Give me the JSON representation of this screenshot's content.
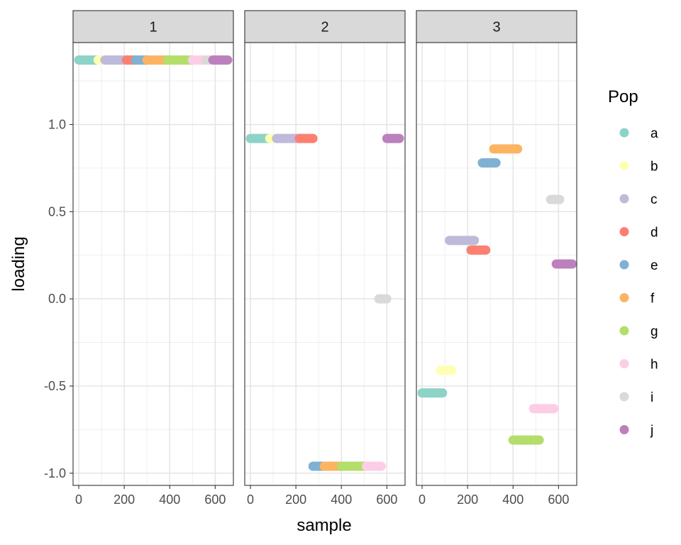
{
  "chart_data": {
    "type": "scatter",
    "xlabel": "sample",
    "ylabel": "loading",
    "xlim": [
      -25,
      680
    ],
    "ylim": [
      -1.07,
      1.47
    ],
    "x_ticks": [
      0,
      200,
      400,
      600
    ],
    "x_tick_labels": [
      "0",
      "200",
      "400",
      "600"
    ],
    "y_ticks": [
      -1.0,
      -0.5,
      0.0,
      0.5,
      1.0
    ],
    "y_tick_labels": [
      "-1.0",
      "-0.5",
      "0.0",
      "0.5",
      "1.0"
    ],
    "legend": {
      "title": "Pop",
      "position": "right",
      "entries": [
        {
          "key": "a",
          "label": "a",
          "color": "#8DD3C7"
        },
        {
          "key": "b",
          "label": "b",
          "color": "#FFFFB3"
        },
        {
          "key": "c",
          "label": "c",
          "color": "#BEBADA"
        },
        {
          "key": "d",
          "label": "d",
          "color": "#FB8072"
        },
        {
          "key": "e",
          "label": "e",
          "color": "#80B1D3"
        },
        {
          "key": "f",
          "label": "f",
          "color": "#FDB462"
        },
        {
          "key": "g",
          "label": "g",
          "color": "#B3DE69"
        },
        {
          "key": "h",
          "label": "h",
          "color": "#FCCDE5"
        },
        {
          "key": "i",
          "label": "i",
          "color": "#D9D9D9"
        },
        {
          "key": "j",
          "label": "j",
          "color": "#BC80BD"
        }
      ]
    },
    "facets": [
      {
        "label": "1",
        "segments": [
          {
            "pop": "a",
            "x0": 0,
            "x1": 85,
            "y": 1.37
          },
          {
            "pop": "b",
            "x0": 85,
            "x1": 115,
            "y": 1.37
          },
          {
            "pop": "c",
            "x0": 115,
            "x1": 210,
            "y": 1.37
          },
          {
            "pop": "d",
            "x0": 210,
            "x1": 250,
            "y": 1.37
          },
          {
            "pop": "e",
            "x0": 250,
            "x1": 300,
            "y": 1.37
          },
          {
            "pop": "f",
            "x0": 300,
            "x1": 390,
            "y": 1.37
          },
          {
            "pop": "g",
            "x0": 390,
            "x1": 500,
            "y": 1.37
          },
          {
            "pop": "h",
            "x0": 500,
            "x1": 560,
            "y": 1.37
          },
          {
            "pop": "i",
            "x0": 560,
            "x1": 590,
            "y": 1.37
          },
          {
            "pop": "j",
            "x0": 590,
            "x1": 655,
            "y": 1.37
          }
        ]
      },
      {
        "label": "2",
        "segments": [
          {
            "pop": "a",
            "x0": 0,
            "x1": 85,
            "y": 0.92
          },
          {
            "pop": "b",
            "x0": 85,
            "x1": 115,
            "y": 0.92
          },
          {
            "pop": "c",
            "x0": 115,
            "x1": 215,
            "y": 0.92
          },
          {
            "pop": "d",
            "x0": 215,
            "x1": 275,
            "y": 0.92
          },
          {
            "pop": "e",
            "x0": 275,
            "x1": 325,
            "y": -0.96
          },
          {
            "pop": "f",
            "x0": 325,
            "x1": 400,
            "y": -0.96
          },
          {
            "pop": "g",
            "x0": 400,
            "x1": 510,
            "y": -0.96
          },
          {
            "pop": "h",
            "x0": 510,
            "x1": 575,
            "y": -0.96
          },
          {
            "pop": "i",
            "x0": 565,
            "x1": 600,
            "y": 0.0
          },
          {
            "pop": "j",
            "x0": 600,
            "x1": 655,
            "y": 0.92
          }
        ]
      },
      {
        "label": "3",
        "segments": [
          {
            "pop": "a",
            "x0": 0,
            "x1": 90,
            "y": -0.54
          },
          {
            "pop": "b",
            "x0": 80,
            "x1": 130,
            "y": -0.41
          },
          {
            "pop": "c",
            "x0": 120,
            "x1": 230,
            "y": 0.335
          },
          {
            "pop": "d",
            "x0": 215,
            "x1": 280,
            "y": 0.28
          },
          {
            "pop": "e",
            "x0": 265,
            "x1": 325,
            "y": 0.78
          },
          {
            "pop": "f",
            "x0": 315,
            "x1": 420,
            "y": 0.86
          },
          {
            "pop": "g",
            "x0": 400,
            "x1": 515,
            "y": -0.81
          },
          {
            "pop": "h",
            "x0": 490,
            "x1": 580,
            "y": -0.63
          },
          {
            "pop": "i",
            "x0": 565,
            "x1": 605,
            "y": 0.57
          },
          {
            "pop": "j",
            "x0": 590,
            "x1": 660,
            "y": 0.2
          }
        ]
      }
    ]
  }
}
